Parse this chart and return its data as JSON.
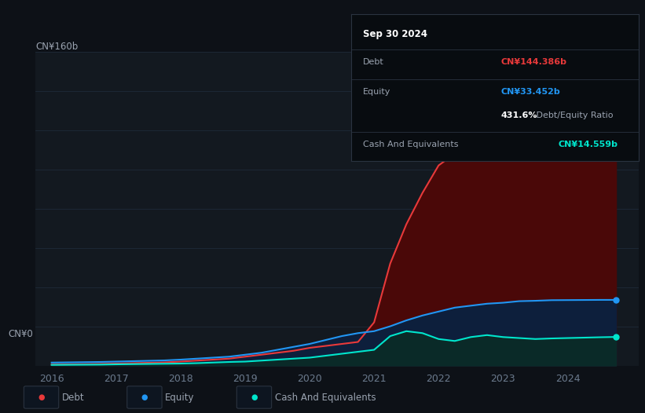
{
  "background_color": "#0d1117",
  "plot_bg_color": "#131920",
  "ylabel_top": "CN¥160b",
  "ylabel_bottom": "CN¥0",
  "years": [
    2016.0,
    2016.25,
    2016.5,
    2016.75,
    2017.0,
    2017.25,
    2017.5,
    2017.75,
    2018.0,
    2018.25,
    2018.5,
    2018.75,
    2019.0,
    2019.25,
    2019.5,
    2019.75,
    2020.0,
    2020.25,
    2020.5,
    2020.75,
    2021.0,
    2021.25,
    2021.5,
    2021.75,
    2022.0,
    2022.25,
    2022.5,
    2022.75,
    2023.0,
    2023.25,
    2023.5,
    2023.75,
    2024.0,
    2024.25,
    2024.5,
    2024.75
  ],
  "debt": [
    0.5,
    0.6,
    0.7,
    0.8,
    1.0,
    1.2,
    1.4,
    1.6,
    2.0,
    2.5,
    3.0,
    3.5,
    4.5,
    5.5,
    6.5,
    7.5,
    9.0,
    10.0,
    11.0,
    12.0,
    22.0,
    52.0,
    72.0,
    88.0,
    102.0,
    108.0,
    106.0,
    110.0,
    116.0,
    120.0,
    124.0,
    128.0,
    133.0,
    137.0,
    140.5,
    144.386
  ],
  "equity": [
    1.5,
    1.6,
    1.7,
    1.8,
    2.0,
    2.2,
    2.4,
    2.6,
    3.0,
    3.5,
    4.0,
    4.5,
    5.5,
    6.5,
    8.0,
    9.5,
    11.0,
    13.0,
    15.0,
    16.5,
    17.5,
    20.0,
    23.0,
    25.5,
    27.5,
    29.5,
    30.5,
    31.5,
    32.0,
    32.8,
    33.0,
    33.3,
    33.35,
    33.4,
    33.45,
    33.452
  ],
  "cash": [
    0.3,
    0.35,
    0.4,
    0.45,
    0.6,
    0.7,
    0.8,
    0.9,
    1.0,
    1.2,
    1.5,
    1.8,
    2.0,
    2.5,
    3.0,
    3.5,
    4.0,
    5.0,
    6.0,
    7.0,
    8.0,
    15.0,
    17.5,
    16.5,
    13.5,
    12.5,
    14.5,
    15.5,
    14.5,
    14.0,
    13.5,
    13.8,
    14.0,
    14.2,
    14.4,
    14.559
  ],
  "debt_color": "#e8393a",
  "equity_color": "#2196f3",
  "cash_color": "#00e5cc",
  "debt_fill": "#4a0808",
  "equity_fill": "#0d1f3c",
  "cash_fill": "#0a2a28",
  "grid_color": "#1e2a38",
  "text_color": "#9aa3b0",
  "tick_label_color": "#6b7a8d",
  "x_ticks": [
    2016,
    2017,
    2018,
    2019,
    2020,
    2021,
    2022,
    2023,
    2024
  ],
  "x_tick_labels": [
    "2016",
    "2017",
    "2018",
    "2019",
    "2020",
    "2021",
    "2022",
    "2023",
    "2024"
  ],
  "ylim": [
    0,
    160
  ],
  "debt_label": "CN¥144.386b",
  "equity_label": "CN¥33.452b",
  "cash_label": "CN¥14.559b",
  "tooltip_title": "Sep 30 2024",
  "ratio_bold": "431.6%",
  "ratio_rest": " Debt/Equity Ratio",
  "tooltip_bg": "#080c10",
  "tooltip_border": "#2a3340",
  "legend_items": [
    "Debt",
    "Equity",
    "Cash And Equivalents"
  ]
}
